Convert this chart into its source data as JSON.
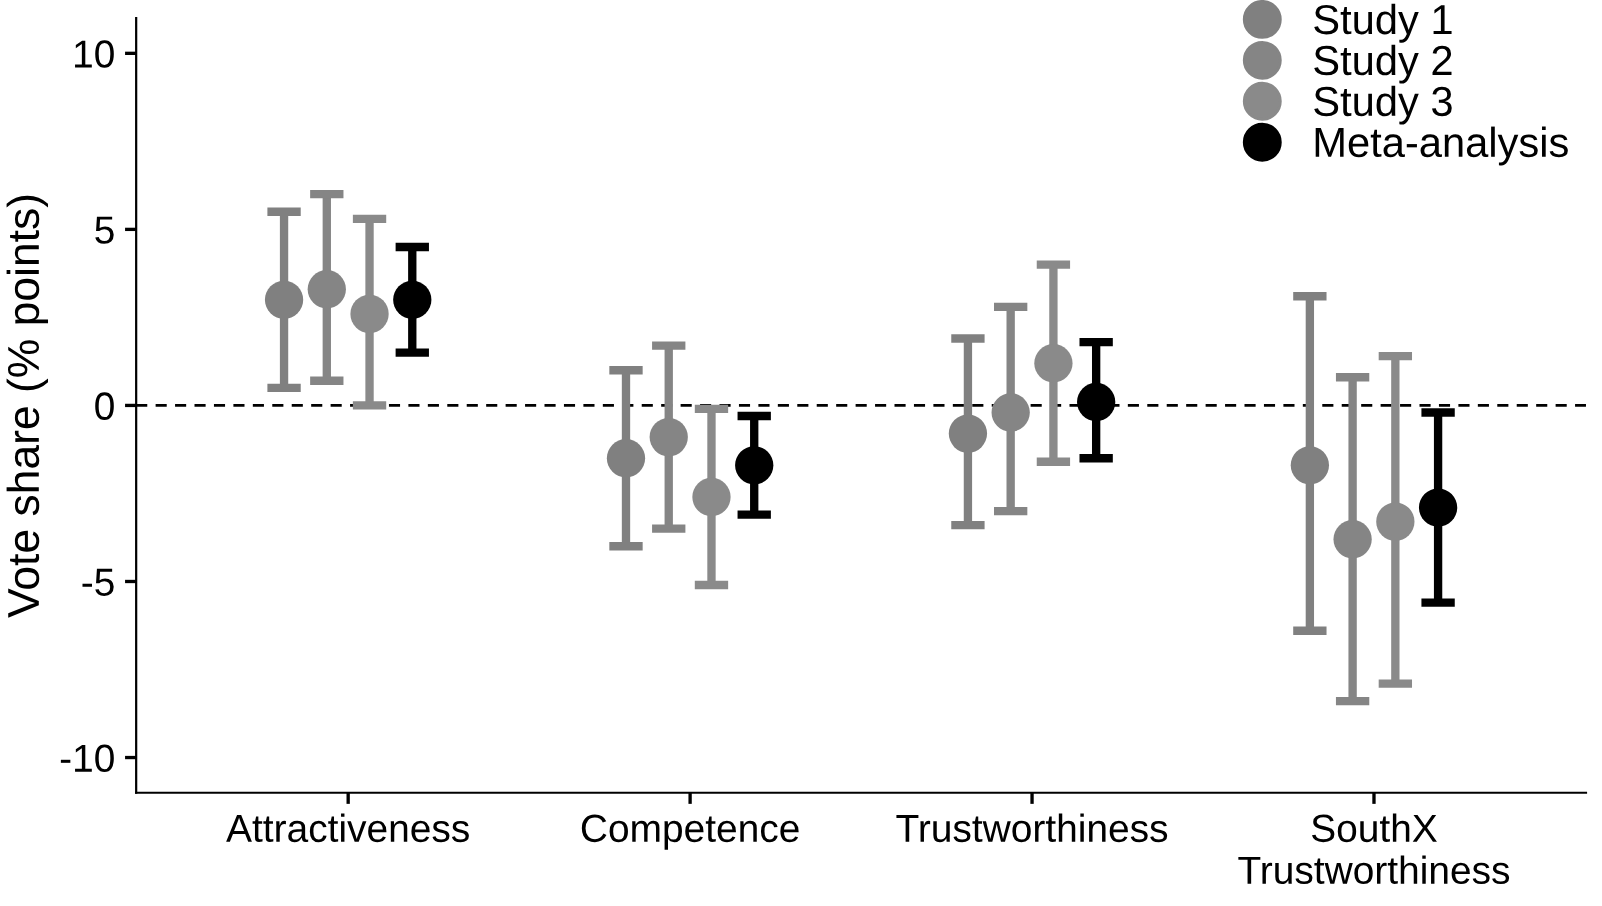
{
  "chart_data": {
    "type": "scatter",
    "ylabel": "Vote share (% points)",
    "categories": [
      "Attractiveness",
      "Competence",
      "Trustworthiness",
      "SouthX\nTrustworthiness"
    ],
    "series": [
      {
        "name": "Study 1",
        "color": "#808080",
        "values": [
          3.0,
          -1.5,
          -0.8,
          -1.7
        ],
        "errors": [
          [
            0.5,
            5.5
          ],
          [
            -4.0,
            1.0
          ],
          [
            -3.4,
            1.9
          ],
          [
            -6.4,
            3.1
          ]
        ]
      },
      {
        "name": "Study 2",
        "color": "#858585",
        "values": [
          3.3,
          -0.9,
          -0.2,
          -3.8
        ],
        "errors": [
          [
            0.7,
            6.0
          ],
          [
            -3.5,
            1.7
          ],
          [
            -3.0,
            2.8
          ],
          [
            -8.4,
            0.8
          ]
        ]
      },
      {
        "name": "Study 3",
        "color": "#8a8a8a",
        "values": [
          2.6,
          -2.6,
          1.2,
          -3.3
        ],
        "errors": [
          [
            0.0,
            5.3
          ],
          [
            -5.1,
            -0.1
          ],
          [
            -1.6,
            4.0
          ],
          [
            -7.9,
            1.4
          ]
        ]
      },
      {
        "name": "Meta-analysis",
        "color": "#000000",
        "values": [
          3.0,
          -1.7,
          0.1,
          -2.9
        ],
        "errors": [
          [
            1.5,
            4.5
          ],
          [
            -3.1,
            -0.3
          ],
          [
            -1.5,
            1.8
          ],
          [
            -5.6,
            -0.2
          ]
        ]
      }
    ],
    "ylim": [
      -11,
      11
    ],
    "yticks": [
      -10,
      -5,
      0,
      5,
      10
    ],
    "ref_lines": [
      {
        "axis": "y",
        "value": 0,
        "line_style": "dashed",
        "color": "#000000"
      }
    ],
    "marker": "circle",
    "grid": false,
    "legend": "top right"
  }
}
